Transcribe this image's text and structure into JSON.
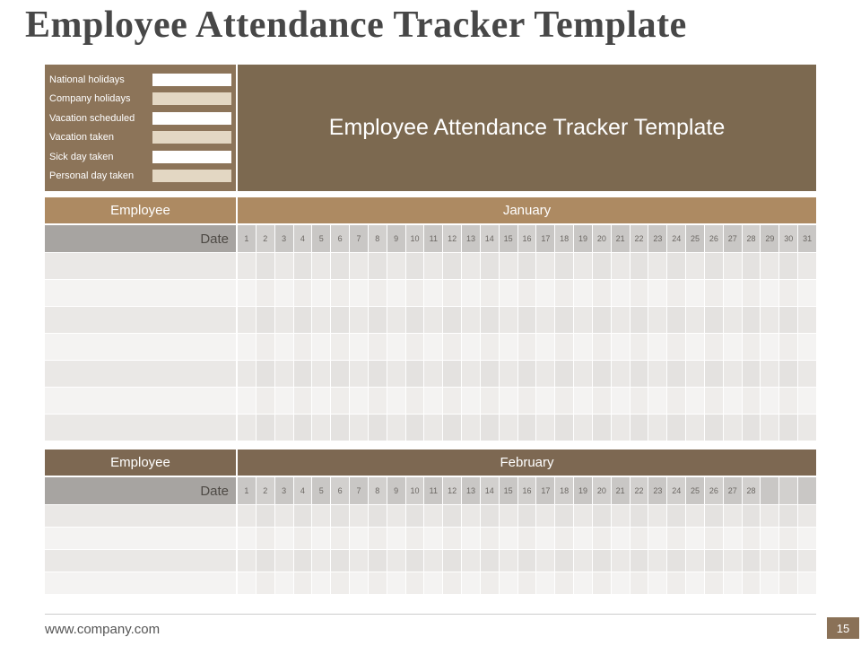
{
  "page": {
    "title": "Employee Attendance Tracker Template",
    "footer_url": "www.company.com",
    "page_number": "15"
  },
  "banner": {
    "title": "Employee Attendance Tracker Template"
  },
  "legend": {
    "items": [
      {
        "label": "National holidays",
        "swatch": "#ffffff"
      },
      {
        "label": "Company holidays",
        "swatch": "#e3d7c3"
      },
      {
        "label": "Vacation scheduled",
        "swatch": "#ffffff"
      },
      {
        "label": "Vacation taken",
        "swatch": "#e3d7c3"
      },
      {
        "label": "Sick day taken",
        "swatch": "#ffffff"
      },
      {
        "label": "Personal day taken",
        "swatch": "#e3d7c3"
      }
    ]
  },
  "table": {
    "employee_label": "Employee",
    "date_label": "Date",
    "total_day_columns": 31,
    "sections": [
      {
        "month": "January",
        "days": 31,
        "body_rows": 7,
        "header_color": "#ad8a62"
      },
      {
        "month": "February",
        "days": 28,
        "body_rows": 4,
        "header_color": "#7d6852"
      }
    ]
  },
  "colors": {
    "title_text": "#474747",
    "banner_brown": "#7c6950",
    "legend_brown": "#8c7459",
    "date_label_gray": "#a7a4a1",
    "day_cell_gray": "#c9c7c5",
    "day_cell_gray_alt": "#d2d0ce",
    "row_odd": "#eae8e6",
    "row_odd_alt": "#e4e2e0",
    "row_even": "#f4f3f2",
    "row_even_alt": "#efedeb",
    "footer_text": "#555555",
    "footer_line": "#cccccc",
    "page_badge_brown": "#8a7157"
  }
}
